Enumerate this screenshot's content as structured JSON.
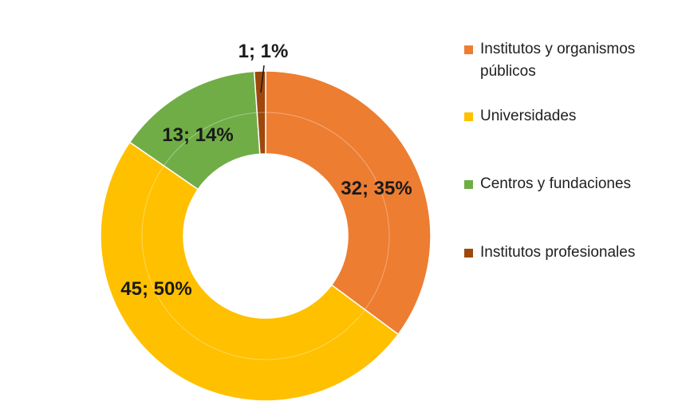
{
  "chart_data": {
    "type": "pie",
    "donut": true,
    "categories": [
      "Institutos y organismos públicos",
      "Universidades",
      "Centros y fundaciones",
      "Institutos profesionales"
    ],
    "values": [
      32,
      45,
      13,
      1
    ],
    "percentages": [
      35,
      50,
      14,
      1
    ],
    "data_labels": [
      "32; 35%",
      "45; 50%",
      "13; 14%",
      "1; 1%"
    ],
    "colors": [
      "#ED7D31",
      "#FFC000",
      "#70AD47",
      "#9E480E"
    ],
    "legend_position": "right",
    "title": ""
  },
  "legend": {
    "items": [
      {
        "label": "Institutos y organismos públicos",
        "color": "#ED7D31"
      },
      {
        "label": "Universidades",
        "color": "#FFC000"
      },
      {
        "label": "Centros y fundaciones",
        "color": "#70AD47"
      },
      {
        "label": "Institutos profesionales",
        "color": "#9E480E"
      }
    ]
  }
}
